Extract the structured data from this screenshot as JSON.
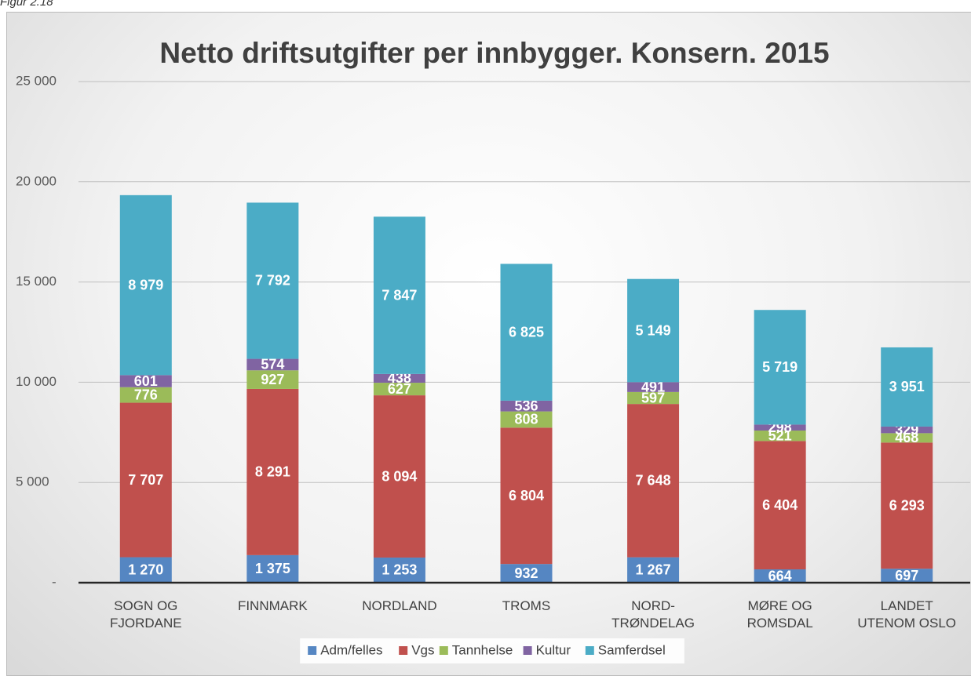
{
  "caption": "Figur 2.18",
  "chart_data": {
    "type": "stacked_bar",
    "title": "Netto driftsutgifter per innbygger. Konsern. 2015",
    "categories": [
      "SOGN OG FJORDANE",
      "FINNMARK",
      "NORDLAND",
      "TROMS",
      "NORD-TRØNDELAG",
      "MØRE OG ROMSDAL",
      "LANDET UTENOM OSLO"
    ],
    "series": [
      {
        "name": "Adm/felles",
        "color": "#5586c2",
        "values": [
          1270,
          1375,
          1253,
          932,
          1267,
          664,
          697
        ],
        "value_labels": [
          "1 270",
          "1 375",
          "1 253",
          "932",
          "1 267",
          "664",
          "697"
        ]
      },
      {
        "name": "Vgs",
        "color": "#c0504d",
        "values": [
          7707,
          8291,
          8094,
          6804,
          7648,
          6404,
          6293
        ],
        "value_labels": [
          "7 707",
          "8 291",
          "8 094",
          "6 804",
          "7 648",
          "6 404",
          "6 293"
        ]
      },
      {
        "name": "Tannhelse",
        "color": "#9bbb59",
        "values": [
          776,
          927,
          627,
          808,
          597,
          521,
          468
        ],
        "value_labels": [
          "776",
          "927",
          "627",
          "808",
          "597",
          "521",
          "468"
        ]
      },
      {
        "name": "Kultur",
        "color": "#8064a2",
        "values": [
          601,
          574,
          438,
          536,
          491,
          298,
          329
        ],
        "value_labels": [
          "601",
          "574",
          "438",
          "536",
          "491",
          "298",
          "329"
        ]
      },
      {
        "name": "Samferdsel",
        "color": "#4bacc6",
        "values": [
          8979,
          7792,
          7847,
          6825,
          5149,
          5719,
          3951
        ],
        "value_labels": [
          "8 979",
          "7 792",
          "7 847",
          "6 825",
          "5 149",
          "5 719",
          "3 951"
        ]
      }
    ],
    "ylim": [
      0,
      25000
    ],
    "yticks": [
      {
        "value": 0,
        "label": "-"
      },
      {
        "value": 5000,
        "label": "5 000"
      },
      {
        "value": 10000,
        "label": "10 000"
      },
      {
        "value": 15000,
        "label": "15 000"
      },
      {
        "value": 20000,
        "label": "20 000"
      },
      {
        "value": 25000,
        "label": "25 000"
      }
    ],
    "grid": true,
    "legend": "bottom"
  }
}
